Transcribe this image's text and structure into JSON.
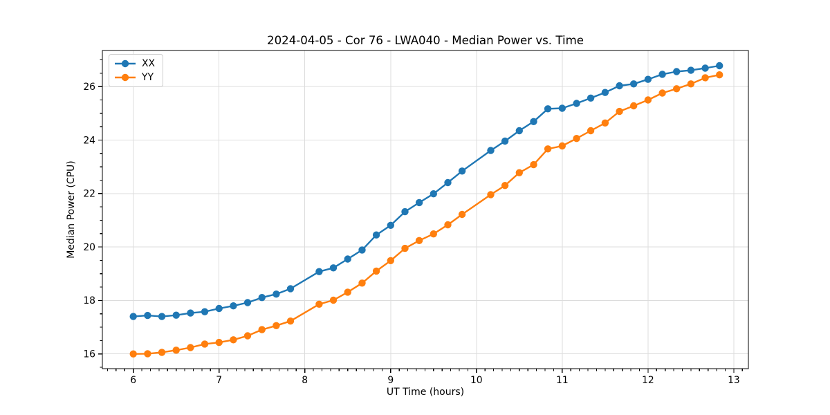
{
  "chart_data": {
    "type": "line",
    "title": "2024-04-05 - Cor 76 - LWA040 - Median Power vs. Time",
    "xlabel": "UT Time (hours)",
    "ylabel": "Median Power (CPU)",
    "x": [
      6.0,
      6.167,
      6.333,
      6.5,
      6.667,
      6.833,
      7.0,
      7.167,
      7.333,
      7.5,
      7.667,
      7.833,
      8.167,
      8.333,
      8.5,
      8.667,
      8.833,
      9.0,
      9.167,
      9.333,
      9.5,
      9.667,
      9.833,
      10.167,
      10.333,
      10.5,
      10.667,
      10.833,
      11.0,
      11.167,
      11.333,
      11.5,
      11.667,
      11.833,
      12.0,
      12.167,
      12.333,
      12.5,
      12.667,
      12.833
    ],
    "series": [
      {
        "name": "XX",
        "color": "#1f77b4",
        "values": [
          17.4,
          17.44,
          17.4,
          17.45,
          17.53,
          17.58,
          17.7,
          17.8,
          17.92,
          18.11,
          18.24,
          18.44,
          19.08,
          19.22,
          19.55,
          19.89,
          20.45,
          20.81,
          21.32,
          21.66,
          21.99,
          22.41,
          22.84,
          23.61,
          23.96,
          24.35,
          24.69,
          25.17,
          25.19,
          25.37,
          25.57,
          25.78,
          26.03,
          26.1,
          26.27,
          26.46,
          26.56,
          26.61,
          26.69,
          26.78
        ]
      },
      {
        "name": "YY",
        "color": "#ff7f0e",
        "values": [
          16.0,
          16.01,
          16.06,
          16.14,
          16.24,
          16.37,
          16.43,
          16.53,
          16.68,
          16.91,
          17.06,
          17.23,
          17.86,
          18.01,
          18.31,
          18.65,
          19.1,
          19.49,
          19.95,
          20.24,
          20.49,
          20.83,
          21.22,
          21.96,
          22.3,
          22.78,
          23.08,
          23.67,
          23.78,
          24.06,
          24.35,
          24.64,
          25.07,
          25.28,
          25.5,
          25.76,
          25.92,
          26.1,
          26.33,
          26.44
        ]
      }
    ],
    "x_ticks": [
      6,
      7,
      8,
      9,
      10,
      11,
      12,
      13
    ],
    "y_ticks": [
      16,
      18,
      20,
      22,
      24,
      26
    ],
    "xlim": [
      5.64,
      13.17
    ],
    "ylim": [
      15.45,
      27.35
    ],
    "minor_tick_step": {
      "x": 0.1,
      "y": 0.5
    },
    "grid": true,
    "legend_position": "upper left"
  }
}
